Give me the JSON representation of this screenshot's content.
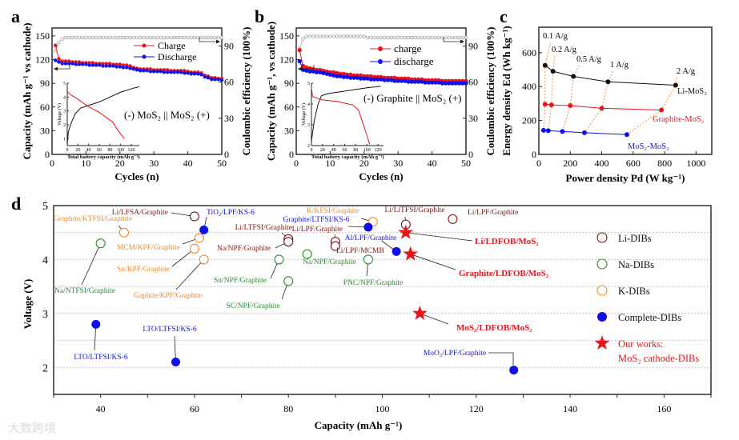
{
  "watermark": "大数跨境",
  "colors": {
    "red": "#e8141c",
    "blue": "#1010e8",
    "black": "#111111",
    "li": "#7a1515",
    "na": "#2a8a2a",
    "k": "#ef8a2a",
    "rate": "#ef8a2a",
    "gray": "#888888"
  },
  "chart_data": [
    {
      "panel": "a",
      "type": "line",
      "xlabel": "Cycles (n)",
      "ylabel": "Capacity (mAh g⁻¹ vs cathode)",
      "y2label": "Coulombic efficiency (100%)",
      "xlim": [
        0,
        50
      ],
      "ylim": [
        0,
        160
      ],
      "y2lim": [
        0,
        105
      ],
      "xticks": [
        0,
        10,
        20,
        30,
        40,
        50
      ],
      "yticks": [
        0,
        30,
        60,
        90,
        120,
        150
      ],
      "y2ticks": [
        0,
        30,
        60,
        90
      ],
      "legend": [
        "Charge",
        "Discharge"
      ],
      "annotation": "(-) MoS₂ || MoS₂ (+)",
      "series": [
        {
          "name": "Charge",
          "values": [
            138,
            121,
            118,
            118,
            118,
            117,
            117,
            117,
            116,
            116,
            116,
            116,
            115,
            115,
            115,
            115,
            115,
            114,
            114,
            114,
            113,
            113,
            112,
            110,
            109,
            108,
            108,
            108,
            108,
            107,
            107,
            107,
            107,
            107,
            106,
            106,
            106,
            106,
            106,
            105,
            104,
            104,
            104,
            103,
            100,
            99,
            97,
            97,
            96,
            96
          ]
        },
        {
          "name": "Discharge",
          "values": [
            119,
            117,
            115,
            115,
            115,
            115,
            114,
            114,
            114,
            114,
            113,
            113,
            113,
            113,
            112,
            112,
            112,
            112,
            111,
            111,
            110,
            110,
            109,
            108,
            107,
            106,
            106,
            106,
            105,
            105,
            105,
            105,
            104,
            104,
            104,
            104,
            104,
            104,
            103,
            103,
            102,
            102,
            102,
            101,
            98,
            97,
            95,
            95,
            95,
            94
          ]
        },
        {
          "name": "Coulombic efficiency",
          "values": [
            86,
            93,
            96,
            97,
            97,
            97,
            97,
            97,
            97,
            97,
            97,
            97,
            97,
            97,
            97,
            97,
            97,
            97,
            97,
            97,
            97,
            97,
            97,
            97,
            97,
            97,
            97,
            97,
            97,
            97,
            97,
            97,
            97,
            97,
            97,
            97,
            97,
            97,
            97,
            97,
            97,
            97,
            97,
            97,
            97,
            97,
            97,
            97,
            97,
            97
          ]
        }
      ],
      "inset": {
        "xlabel": "Total battery capacity (mAh g⁻¹)",
        "ylabel": "Voltage (V)",
        "xlim": [
          0,
          135
        ],
        "ylim": [
          0.5,
          5
        ],
        "xticks": [
          0,
          20,
          40,
          60,
          80,
          100,
          120
        ],
        "yticks": [
          1,
          2,
          3,
          4,
          5
        ],
        "charge": [
          [
            0,
            0.6
          ],
          [
            2,
            1.5
          ],
          [
            8,
            2.2
          ],
          [
            15,
            2.8
          ],
          [
            25,
            3.2
          ],
          [
            40,
            3.4
          ],
          [
            60,
            3.65
          ],
          [
            80,
            4.0
          ],
          [
            100,
            4.35
          ],
          [
            120,
            4.6
          ],
          [
            135,
            4.75
          ]
        ],
        "discharge": [
          [
            0,
            4.4
          ],
          [
            5,
            4.2
          ],
          [
            20,
            3.85
          ],
          [
            40,
            3.3
          ],
          [
            60,
            2.9
          ],
          [
            85,
            2.2
          ],
          [
            95,
            1.6
          ],
          [
            107,
            1.0
          ]
        ]
      }
    },
    {
      "panel": "b",
      "type": "line",
      "xlabel": "Cycles (n)",
      "ylabel": "Capacity (mAh g⁻¹, vs cathode)",
      "y2label": "Coulombic efficiency (100%)",
      "xlim": [
        0,
        50
      ],
      "ylim": [
        0,
        160
      ],
      "y2lim": [
        0,
        105
      ],
      "xticks": [
        0,
        10,
        20,
        30,
        40,
        50
      ],
      "yticks": [
        0,
        30,
        60,
        90,
        120,
        150
      ],
      "y2ticks": [
        0,
        30,
        60,
        90
      ],
      "legend": [
        "charge",
        "discharge"
      ],
      "annotation": "(-) Graphite || MoS₂ (+)",
      "series": [
        {
          "name": "charge",
          "values": [
            132,
            112,
            110,
            109,
            108,
            107,
            107,
            106,
            105,
            104,
            104,
            103,
            102,
            102,
            101,
            101,
            100,
            100,
            100,
            99,
            99,
            99,
            98,
            98,
            98,
            97,
            97,
            97,
            97,
            96,
            96,
            96,
            96,
            95,
            95,
            95,
            95,
            94,
            94,
            94,
            94,
            94,
            93,
            93,
            93,
            93,
            93,
            93,
            93,
            93
          ]
        },
        {
          "name": "discharge",
          "values": [
            118,
            107,
            106,
            105,
            105,
            104,
            104,
            103,
            102,
            101,
            100,
            99,
            99,
            98,
            98,
            97,
            97,
            97,
            96,
            96,
            96,
            95,
            95,
            95,
            95,
            94,
            94,
            94,
            93,
            93,
            93,
            93,
            92,
            92,
            92,
            92,
            92,
            91,
            91,
            91,
            91,
            91,
            90,
            90,
            90,
            90,
            90,
            90,
            90,
            90
          ]
        },
        {
          "name": "Coulombic efficiency",
          "values": [
            88,
            96,
            98,
            98,
            98,
            98,
            98,
            98,
            98,
            98,
            98,
            98,
            98,
            98,
            98,
            98,
            98,
            98,
            98,
            98,
            97,
            97,
            97,
            97,
            97,
            97,
            97,
            97,
            97,
            97,
            97,
            97,
            97,
            97,
            97,
            97,
            97,
            97,
            97,
            97,
            97,
            97,
            97,
            97,
            97,
            97,
            97,
            97,
            97,
            97
          ]
        }
      ],
      "inset": {
        "xlabel": "Total battery capacity (mAh g⁻¹)",
        "ylabel": "Voltage (V)",
        "xlim": [
          0,
          130
        ],
        "ylim": [
          2,
          5
        ],
        "xticks": [
          0,
          20,
          40,
          60,
          80,
          100,
          120
        ],
        "yticks": [
          2,
          3,
          4,
          5
        ],
        "charge": [
          [
            0,
            2.2
          ],
          [
            5,
            3.2
          ],
          [
            12,
            4.0
          ],
          [
            18,
            4.4
          ],
          [
            30,
            4.5
          ],
          [
            60,
            4.62
          ],
          [
            100,
            4.78
          ],
          [
            125,
            4.85
          ]
        ],
        "discharge": [
          [
            0,
            4.8
          ],
          [
            2,
            4.35
          ],
          [
            20,
            4.2
          ],
          [
            50,
            4.1
          ],
          [
            75,
            3.95
          ],
          [
            85,
            3.7
          ],
          [
            90,
            3.3
          ],
          [
            100,
            2.5
          ],
          [
            105,
            2.05
          ]
        ]
      }
    },
    {
      "panel": "c",
      "type": "line",
      "xlabel": "Power density Pd (W kg⁻¹)",
      "ylabel": "Energy density Ed (Wh kg⁻¹)",
      "xlim": [
        0,
        1100
      ],
      "ylim": [
        0,
        750
      ],
      "xticks": [
        0,
        200,
        400,
        600,
        800,
        1000
      ],
      "yticks": [
        0,
        200,
        400,
        600
      ],
      "rates": [
        "0.1 A/g",
        "0.2 A/g",
        "0.5 A/g",
        "1 A/g",
        "2 A/g"
      ],
      "series": [
        {
          "name": "Li-MoS₂",
          "color": "#111111",
          "points": [
            [
              40,
              525
            ],
            [
              90,
              490
            ],
            [
              220,
              460
            ],
            [
              440,
              428
            ],
            [
              870,
              408
            ]
          ]
        },
        {
          "name": "Graphite-MoS₂",
          "color": "#e8141c",
          "points": [
            [
              40,
              296
            ],
            [
              80,
              292
            ],
            [
              200,
              288
            ],
            [
              400,
              272
            ],
            [
              780,
              262
            ]
          ]
        },
        {
          "name": "MoS₂-MoS₂",
          "color": "#1010e8",
          "points": [
            [
              30,
              142
            ],
            [
              60,
              140
            ],
            [
              150,
              135
            ],
            [
              290,
              128
            ],
            [
              560,
              117
            ]
          ]
        }
      ]
    },
    {
      "panel": "d",
      "type": "scatter",
      "xlabel": "Capacity (mAh g⁻¹)",
      "ylabel": "Voltage (V)",
      "xlim": [
        30,
        170
      ],
      "ylim": [
        1.5,
        5
      ],
      "xticks": [
        40,
        60,
        80,
        100,
        120,
        140,
        160
      ],
      "yticks": [
        2,
        3,
        4,
        5
      ],
      "grid": "dashed horizontal every 0.5 V",
      "legend": [
        {
          "key": "li",
          "label": "Li-DIBs"
        },
        {
          "key": "na",
          "label": "Na-DIBs"
        },
        {
          "key": "k",
          "label": "K-DIBs"
        },
        {
          "key": "complete",
          "label": "Complete-DIBs"
        },
        {
          "key": "ours",
          "label": "Our works:",
          "label2": "MoS₂ cathode-DIBs"
        }
      ],
      "points": [
        {
          "label": "Li/LFSA/Graphite",
          "cat": "li",
          "x": 60,
          "y": 4.8
        },
        {
          "label": "Li/LTFSI/Graphite",
          "cat": "li",
          "x": 80,
          "y": 4.38
        },
        {
          "label": "Na/NPF/Graphite",
          "cat": "li",
          "x": 80,
          "y": 4.33
        },
        {
          "label": "Li/LPF/Graphite",
          "cat": "li",
          "x": 90,
          "y": 4.33
        },
        {
          "label": "Li/LPF/MCMB",
          "cat": "li",
          "x": 90,
          "y": 4.25
        },
        {
          "label": "Li/LiTFSI/Graphite",
          "cat": "li",
          "x": 105,
          "y": 4.65
        },
        {
          "label": "Li/LPF/Graphite",
          "cat": "li",
          "x": 115,
          "y": 4.75
        },
        {
          "label": "Na/NTFSI/Graphite",
          "cat": "na",
          "x": 40,
          "y": 4.3
        },
        {
          "label": "Sn/NPF/Graphite",
          "cat": "na",
          "x": 78,
          "y": 4.0
        },
        {
          "label": "SC/NPF/Graphite",
          "cat": "na",
          "x": 80,
          "y": 3.6
        },
        {
          "label": "Na/NPF/Graphite",
          "cat": "na",
          "x": 84,
          "y": 4.1
        },
        {
          "label": "PNC/NPF/Graphite",
          "cat": "na",
          "x": 97,
          "y": 4.0
        },
        {
          "label": "Graphite/KTFSI/Graphite",
          "cat": "k",
          "x": 45,
          "y": 4.5
        },
        {
          "label": "MCM/KPF/Graphite",
          "cat": "k",
          "x": 61,
          "y": 4.4
        },
        {
          "label": "Sn/KPF/Graphite",
          "cat": "k",
          "x": 60,
          "y": 4.2
        },
        {
          "label": "Gaphite/KPF/Graphite",
          "cat": "k",
          "x": 62,
          "y": 4.0
        },
        {
          "label": "K/KFSI/Graphite",
          "cat": "k",
          "x": 98,
          "y": 4.7
        },
        {
          "label": "TiO₂/LPF/KS-6",
          "cat": "complete",
          "x": 62,
          "y": 4.55
        },
        {
          "label": "Graphite/LTFSI/KS-6",
          "cat": "complete",
          "x": 97,
          "y": 4.6
        },
        {
          "label": "Al/LPF/Graphite",
          "cat": "complete",
          "x": 103,
          "y": 4.15
        },
        {
          "label": "LTO/LTFSI/KS-6",
          "cat": "complete",
          "x": 39,
          "y": 2.8
        },
        {
          "label": "LTO/LTFSI/KS-6",
          "cat": "complete",
          "x": 56,
          "y": 2.1
        },
        {
          "label": "MoO₃/LPF/Graphite",
          "cat": "complete",
          "x": 128,
          "y": 1.95
        },
        {
          "label": "Li/LDFOB/MoS₂",
          "cat": "ours",
          "x": 105,
          "y": 4.5
        },
        {
          "label": "Graphite/LDFOB/MoS₂",
          "cat": "ours",
          "x": 106,
          "y": 4.1
        },
        {
          "label": "MoS₂/LDFOB/MoS₂",
          "cat": "ours",
          "x": 108,
          "y": 3.0
        }
      ]
    }
  ]
}
